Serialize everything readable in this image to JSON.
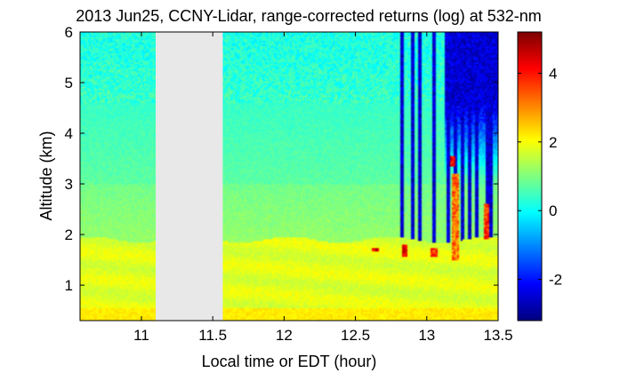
{
  "chart_data": {
    "type": "heatmap",
    "title": "2013 Jun25, CCNY-Lidar, range-corrected returns (log) at 532-nm",
    "xlabel": "Local time or EDT (hour)",
    "ylabel": "Altitude (km)",
    "xlim": [
      10.57,
      13.5
    ],
    "ylim": [
      0.3,
      6.0
    ],
    "xticks": [
      11,
      11.5,
      12,
      12.5,
      13,
      13.5
    ],
    "xtick_labels": [
      "11",
      "11.5",
      "12",
      "12.5",
      "13",
      "13.5"
    ],
    "yticks": [
      1,
      2,
      3,
      4,
      5,
      6
    ],
    "ytick_labels": [
      "1",
      "2",
      "3",
      "4",
      "5",
      "6"
    ],
    "colorbar": {
      "range": [
        -3.2,
        5.2
      ],
      "ticks": [
        -2,
        0,
        2,
        4
      ],
      "tick_labels": [
        "-2",
        "0",
        "2",
        "4"
      ],
      "colormap": "jet"
    },
    "no_data_interval": [
      11.1,
      11.57
    ],
    "no_data_color": "#e8e8e8",
    "features": {
      "boundary_layer_top_km": 1.9,
      "aerosol_layer_values": {
        "near_surface": 2.2,
        "boundary_layer": 1.8,
        "mid_troposphere": 0.9,
        "upper": 0.2
      },
      "cloud_events": [
        {
          "time": 12.64,
          "base_km": 1.65,
          "top_km": 1.75,
          "value": 5.0
        },
        {
          "time": 12.85,
          "base_km": 1.55,
          "top_km": 1.8,
          "value": 5.0
        },
        {
          "time": 13.05,
          "base_km": 1.55,
          "top_km": 1.75,
          "value": 4.5
        },
        {
          "time": 13.18,
          "base_km": 3.35,
          "top_km": 3.55,
          "value": 5.0
        },
        {
          "time": 13.2,
          "base_km": 1.5,
          "top_km": 3.2,
          "value": 4.0
        },
        {
          "time": 13.42,
          "base_km": 1.9,
          "top_km": 2.6,
          "value": 4.5
        }
      ],
      "signal_attenuated_columns": [
        12.83,
        12.9,
        12.95,
        13.05,
        13.15,
        13.2,
        13.25,
        13.3,
        13.35,
        13.42,
        13.45
      ]
    }
  }
}
